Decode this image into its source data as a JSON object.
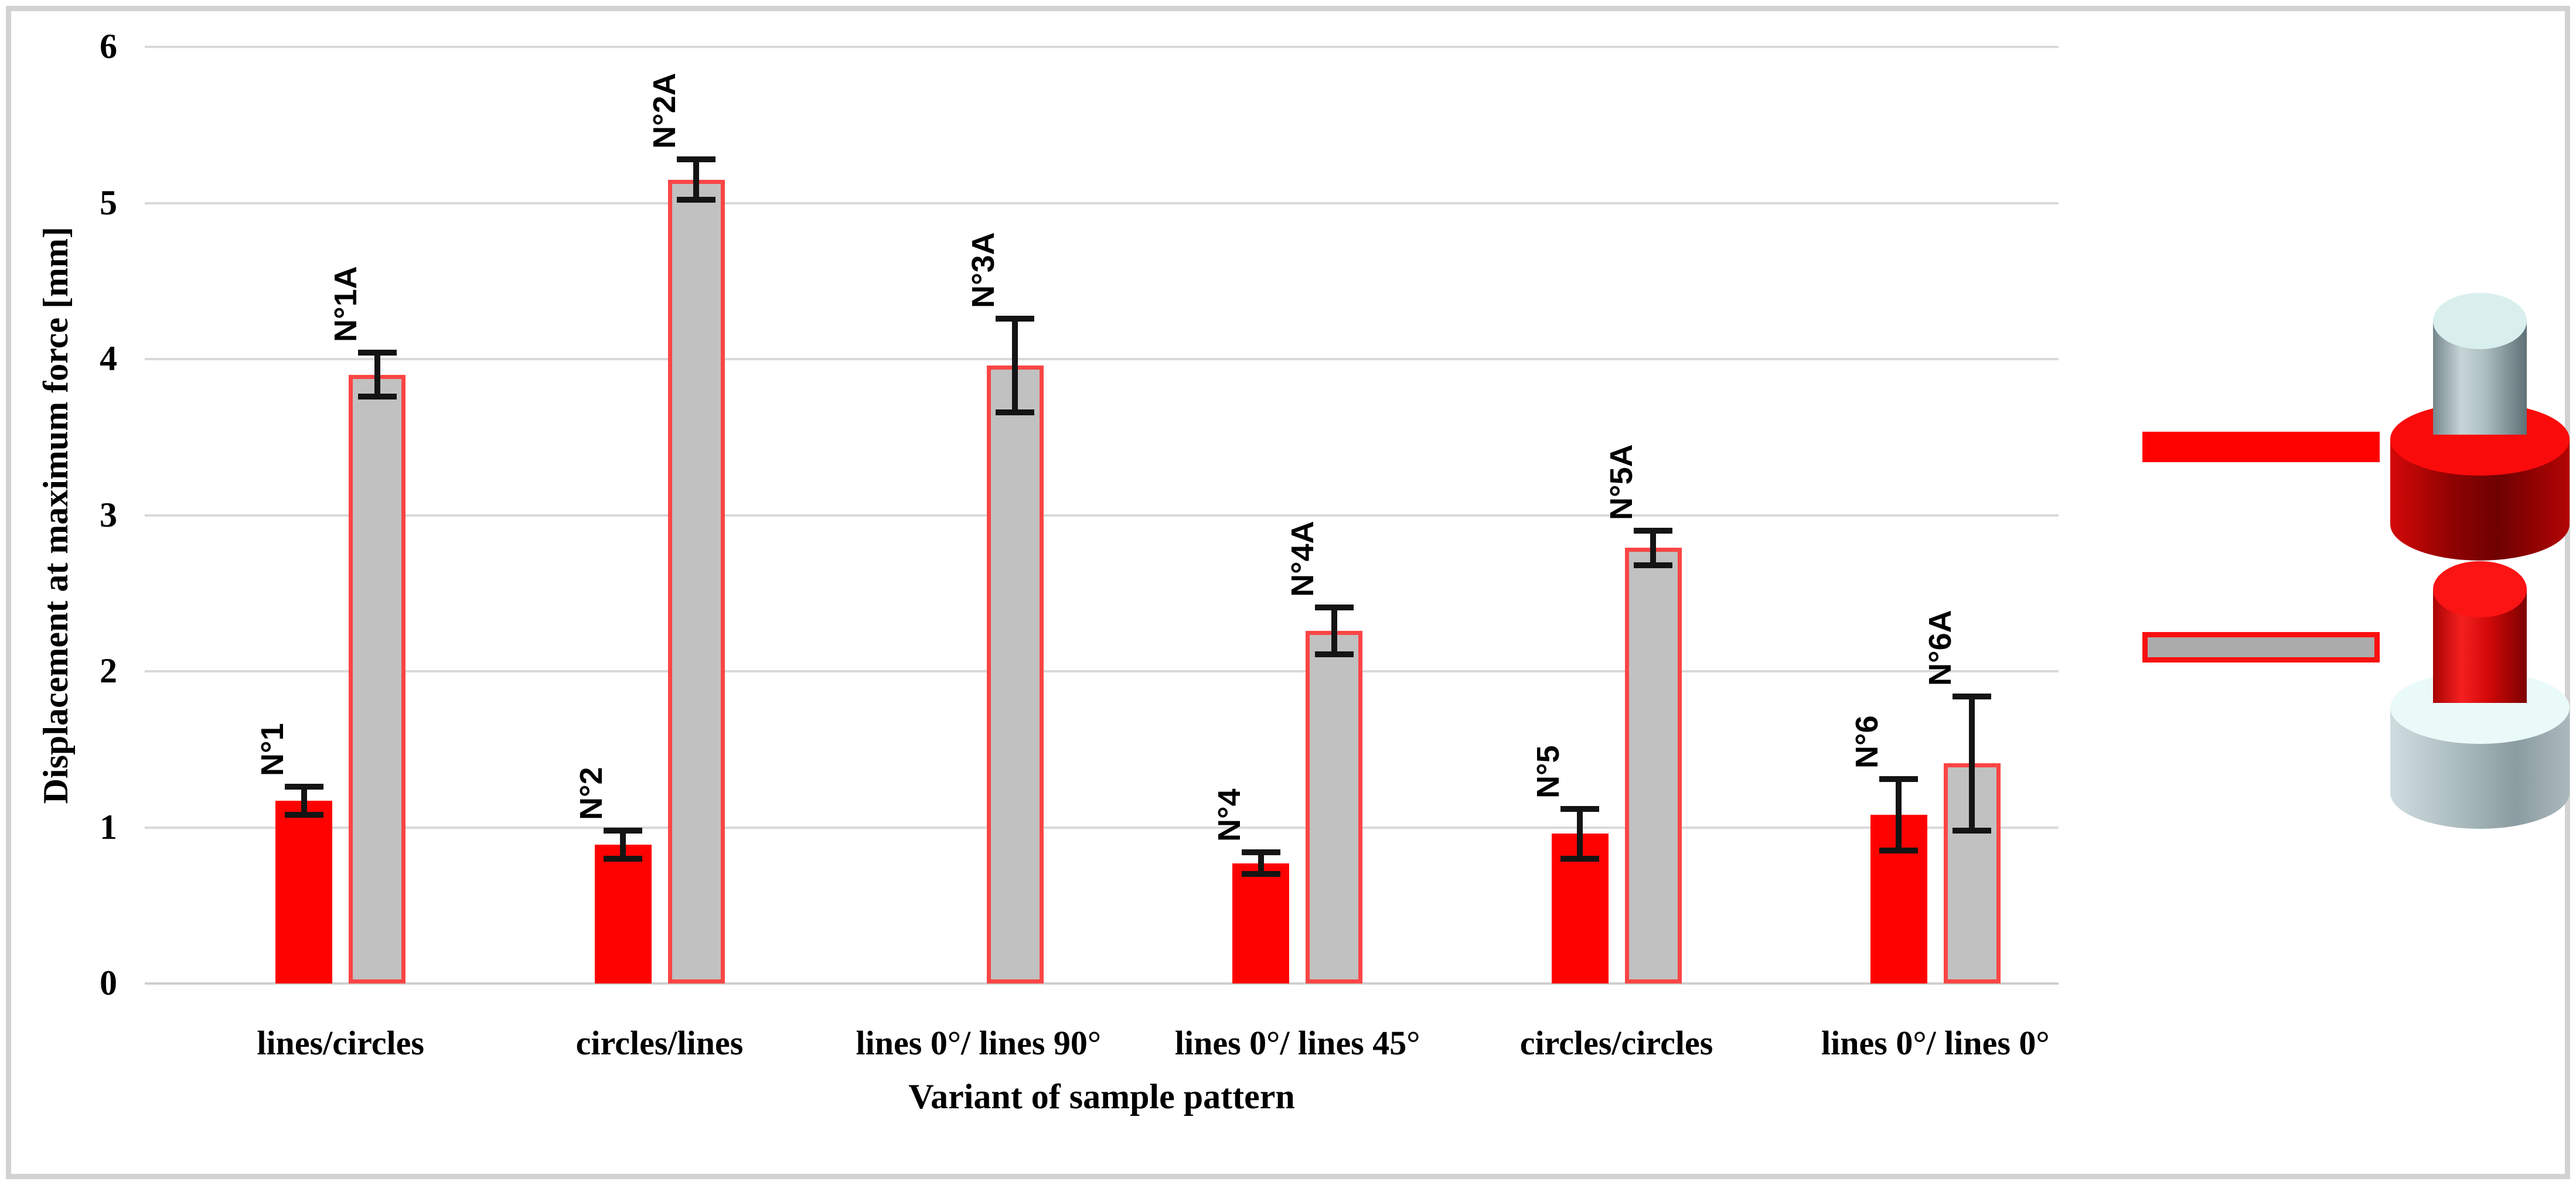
{
  "figure": {
    "kind": "grouped-bar-chart-with-error-bars-and-legend"
  },
  "chart_data": {
    "type": "bar",
    "title": "",
    "xlabel": "Variant of sample pattern",
    "ylabel": "Displacement at maximum force [mm]",
    "ylim": [
      0,
      6
    ],
    "yticks": [
      0,
      1,
      2,
      3,
      4,
      5,
      6
    ],
    "grid": true,
    "legend_position": "right",
    "categories": [
      "lines/circles",
      "circles/lines",
      "lines 0°/ lines 90°",
      "lines 0°/ lines 45°",
      "circles/circles",
      "lines 0°/ lines 0°"
    ],
    "series": [
      {
        "name": "red solid sample",
        "key": "red",
        "color": "#fe0202",
        "values": [
          1.17,
          0.89,
          null,
          0.77,
          0.96,
          1.08
        ],
        "errors": [
          0.09,
          0.09,
          null,
          0.07,
          0.16,
          0.23
        ],
        "point_labels": [
          "N°1",
          "N°2",
          null,
          "N°4",
          "N°5",
          "N°6"
        ]
      },
      {
        "name": "gray sample with red outline",
        "key": "gray",
        "color": "#c1c1c1",
        "border_color": "#fb4545",
        "values": [
          3.9,
          5.15,
          3.96,
          2.26,
          2.79,
          1.41
        ],
        "errors": [
          0.14,
          0.13,
          0.3,
          0.15,
          0.11,
          0.43
        ],
        "point_labels": [
          "N°1A",
          "N°2A",
          "N°3A",
          "N°4A",
          "N°5A",
          "N°6A"
        ]
      }
    ]
  },
  "legend": {
    "items": [
      {
        "swatch": "red-solid",
        "icon": "red-cylinder-with-gray-pin"
      },
      {
        "swatch": "gray-with-red-outline",
        "icon": "gray-cylinder-with-red-pin"
      }
    ]
  },
  "colors": {
    "red": "#fe0202",
    "gray_fill": "#c1c1c1",
    "gray_border": "#fb4545",
    "gridline": "#d9d9d9",
    "error_bar": "#141414",
    "frame": "#d2d2d2",
    "pin_top_pale": "#d8efee",
    "red_base_top": "#fa0b0b",
    "red_pin_top": "#fb1414",
    "gray_base_top": "#eafaf9"
  }
}
